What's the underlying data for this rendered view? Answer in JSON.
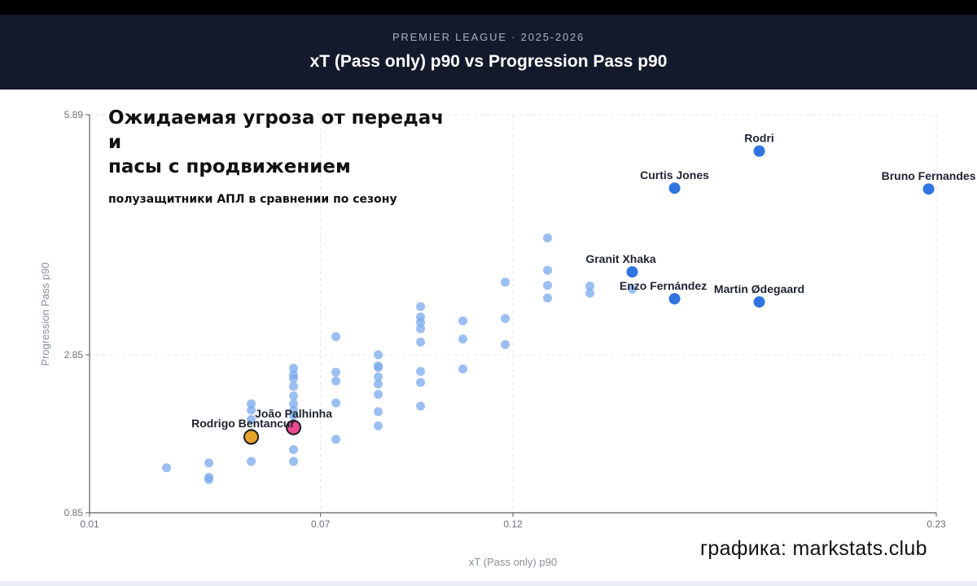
{
  "header": {
    "kicker": "PREMIER LEAGUE · 2025-2026",
    "title": "xT (Pass only) p90 vs Progression Pass p90"
  },
  "annotation": {
    "title_lines": [
      "Ожидаемая угроза от передач",
      "и",
      "пасы с продвижением"
    ],
    "subtitle": "полузащитники АПЛ в сравнении по сезону"
  },
  "credit": "графика: markstats.club",
  "colors": {
    "background_point": "#7aa9ec",
    "highlight": "#2f74e0",
    "orange": "#e8a32c",
    "pink": "#e84a91",
    "grid": "#e4e6ea",
    "axis": "#5a5e66"
  },
  "chart_data": {
    "type": "scatter",
    "xlabel": "xT (Pass only) p90",
    "ylabel": "Progression Pass p90",
    "xlim": [
      0.01,
      0.23
    ],
    "ylim": [
      0.85,
      5.89
    ],
    "x_ticks": [
      "0.01",
      "0.07",
      "0.12",
      "0.23"
    ],
    "y_ticks": [
      "0.85",
      "2.85",
      "5.89"
    ],
    "grid": true,
    "series": [
      {
        "points": [
          {
            "x": 0.03,
            "y": 1.42
          },
          {
            "x": 0.041,
            "y": 1.48
          },
          {
            "x": 0.041,
            "y": 1.3
          },
          {
            "x": 0.041,
            "y": 1.27
          },
          {
            "x": 0.052,
            "y": 2.23
          },
          {
            "x": 0.052,
            "y": 2.15
          },
          {
            "x": 0.052,
            "y": 2.03
          },
          {
            "x": 0.052,
            "y": 1.86
          },
          {
            "x": 0.052,
            "y": 1.5
          },
          {
            "x": 0.063,
            "y": 2.68
          },
          {
            "x": 0.063,
            "y": 2.6
          },
          {
            "x": 0.063,
            "y": 2.55
          },
          {
            "x": 0.063,
            "y": 2.45
          },
          {
            "x": 0.063,
            "y": 2.33
          },
          {
            "x": 0.063,
            "y": 2.23
          },
          {
            "x": 0.063,
            "y": 2.15
          },
          {
            "x": 0.063,
            "y": 2.08
          },
          {
            "x": 0.063,
            "y": 1.65
          },
          {
            "x": 0.063,
            "y": 1.5
          },
          {
            "x": 0.074,
            "y": 3.08
          },
          {
            "x": 0.074,
            "y": 2.63
          },
          {
            "x": 0.074,
            "y": 2.52
          },
          {
            "x": 0.074,
            "y": 2.24
          },
          {
            "x": 0.074,
            "y": 1.78
          },
          {
            "x": 0.085,
            "y": 2.85
          },
          {
            "x": 0.085,
            "y": 2.71
          },
          {
            "x": 0.085,
            "y": 2.69
          },
          {
            "x": 0.085,
            "y": 2.57
          },
          {
            "x": 0.085,
            "y": 2.48
          },
          {
            "x": 0.085,
            "y": 2.35
          },
          {
            "x": 0.085,
            "y": 2.13
          },
          {
            "x": 0.085,
            "y": 1.95
          },
          {
            "x": 0.096,
            "y": 3.46
          },
          {
            "x": 0.096,
            "y": 3.33
          },
          {
            "x": 0.096,
            "y": 3.26
          },
          {
            "x": 0.096,
            "y": 3.18
          },
          {
            "x": 0.096,
            "y": 3.01
          },
          {
            "x": 0.096,
            "y": 2.64
          },
          {
            "x": 0.096,
            "y": 2.5
          },
          {
            "x": 0.096,
            "y": 2.2
          },
          {
            "x": 0.107,
            "y": 3.28
          },
          {
            "x": 0.107,
            "y": 3.05
          },
          {
            "x": 0.107,
            "y": 2.67
          },
          {
            "x": 0.118,
            "y": 3.77
          },
          {
            "x": 0.118,
            "y": 3.31
          },
          {
            "x": 0.118,
            "y": 2.98
          },
          {
            "x": 0.129,
            "y": 4.33
          },
          {
            "x": 0.129,
            "y": 3.92
          },
          {
            "x": 0.129,
            "y": 3.73
          },
          {
            "x": 0.129,
            "y": 3.57
          },
          {
            "x": 0.14,
            "y": 3.72
          },
          {
            "x": 0.14,
            "y": 3.63
          },
          {
            "x": 0.151,
            "y": 3.68
          }
        ]
      },
      {
        "points": [
          {
            "x": 0.184,
            "y": 5.43,
            "label": "Rodri"
          },
          {
            "x": 0.162,
            "y": 4.96,
            "label": "Curtis Jones"
          },
          {
            "x": 0.228,
            "y": 4.95,
            "label": "Bruno Fernandes"
          },
          {
            "x": 0.151,
            "y": 3.9,
            "label": "Granit Xhaka"
          },
          {
            "x": 0.162,
            "y": 3.56,
            "label": "Enzo Fernández"
          },
          {
            "x": 0.184,
            "y": 3.52,
            "label": "Martin Ødegaard"
          }
        ]
      },
      {
        "points": [
          {
            "x": 0.052,
            "y": 1.81,
            "label": "Rodrigo Bentancur"
          }
        ]
      },
      {
        "points": [
          {
            "x": 0.063,
            "y": 1.93,
            "label": "João Palhinha"
          }
        ]
      }
    ]
  }
}
